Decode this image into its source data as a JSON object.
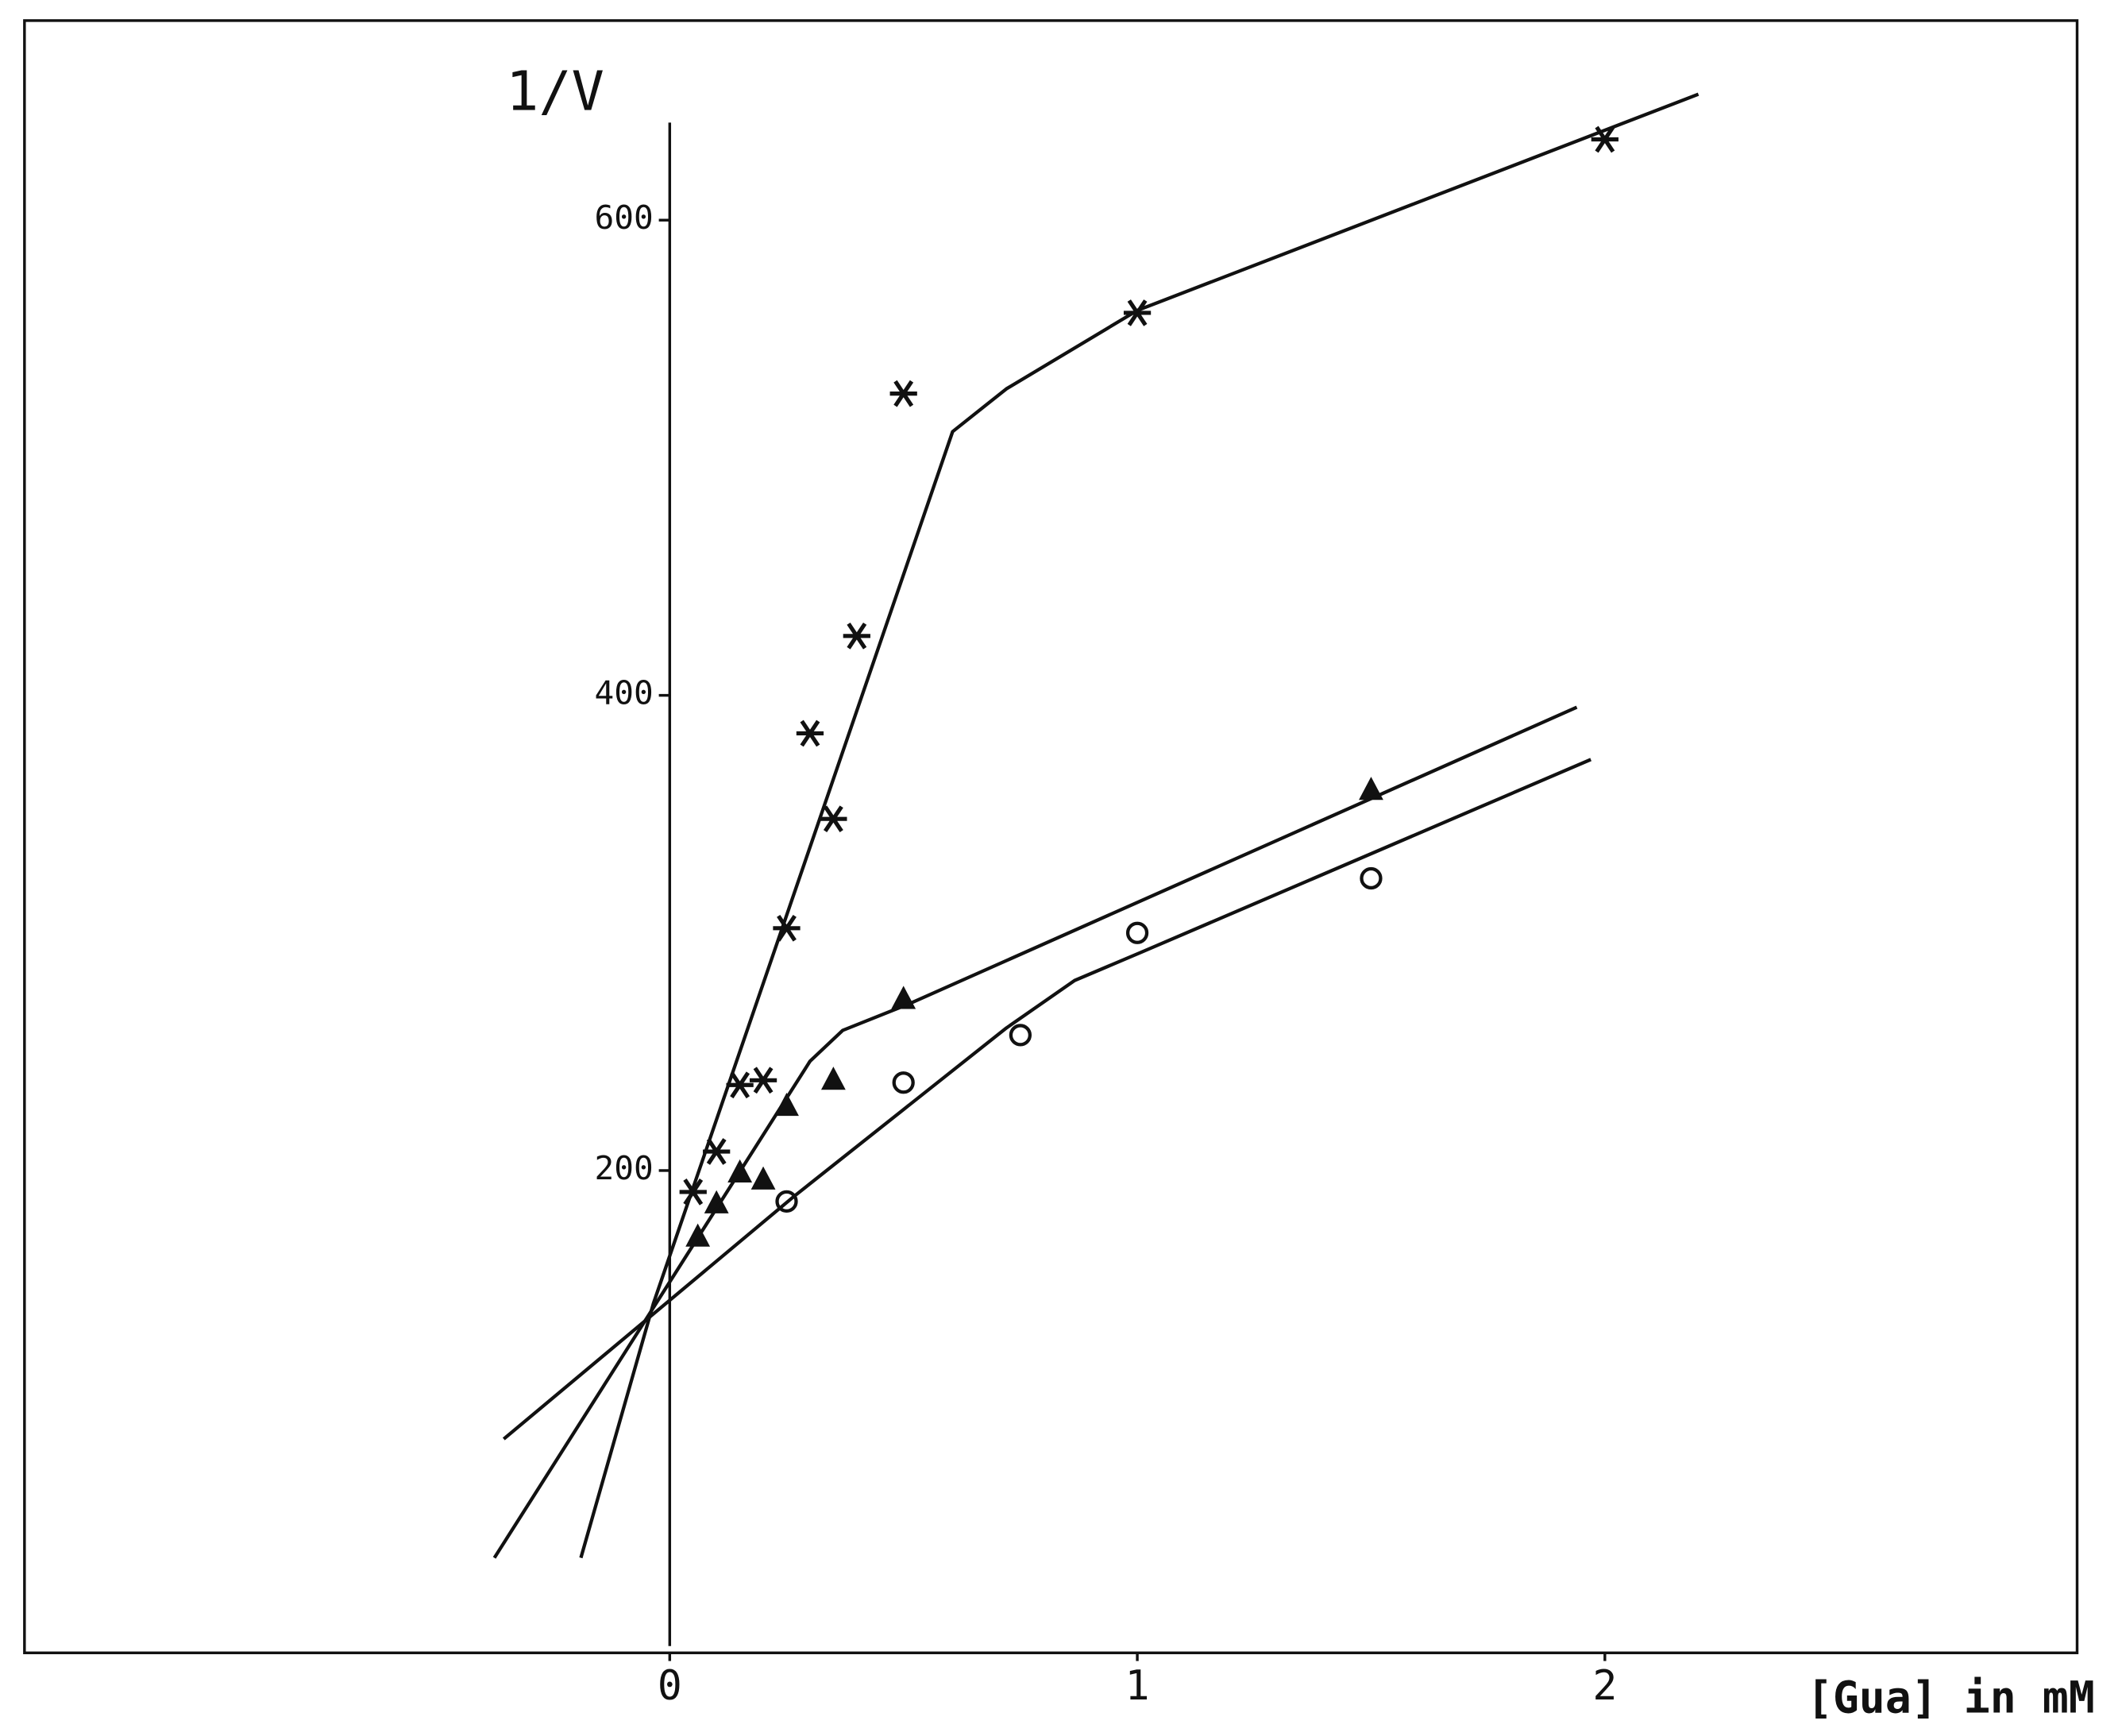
{
  "chart_data": {
    "type": "scatter",
    "y_label": "1/V",
    "x_label": "[Gua] in mM",
    "xlim": [
      -1.38,
      3.01
    ],
    "ylim": [
      -3,
      684
    ],
    "xticks": [
      0,
      1,
      2
    ],
    "yticks": [
      200,
      400,
      600
    ],
    "series": [
      {
        "style": "star",
        "color": "#111111",
        "x": [
          0.05,
          0.1,
          0.15,
          0.2,
          0.25,
          0.3,
          0.35,
          0.4,
          0.5,
          1,
          2
        ],
        "values": [
          191,
          208,
          236,
          238,
          302,
          384,
          348,
          425,
          527,
          561,
          634
        ]
      },
      {
        "style": "triangle",
        "color": "#111111",
        "x": [
          0.06,
          0.1,
          0.15,
          0.2,
          0.25,
          0.35,
          0.5,
          1.5
        ],
        "values": [
          172,
          186,
          199,
          196,
          227,
          238,
          272,
          360
        ]
      },
      {
        "style": "circle",
        "color": "#111111",
        "x": [
          0.25,
          0.5,
          0.75,
          1,
          1.5
        ],
        "values": [
          187,
          237,
          257,
          300,
          323
        ]
      },
      {
        "style": "line",
        "color": "#111111",
        "x": [
          -0.19,
          -0.035,
          0.605,
          0.72,
          1,
          2.2
        ],
        "values": [
          37,
          144,
          511,
          529,
          562,
          653
        ]
      },
      {
        "style": "line",
        "color": "#111111",
        "x": [
          -0.375,
          0.3,
          0.37,
          0.51,
          1.94
        ],
        "values": [
          37,
          246,
          259,
          270,
          395
        ]
      },
      {
        "style": "line",
        "color": "#111111",
        "x": [
          -0.355,
          0.265,
          0.72,
          0.866,
          1.01,
          1.97
        ],
        "values": [
          87,
          189,
          260,
          280,
          292,
          373
        ]
      }
    ]
  }
}
